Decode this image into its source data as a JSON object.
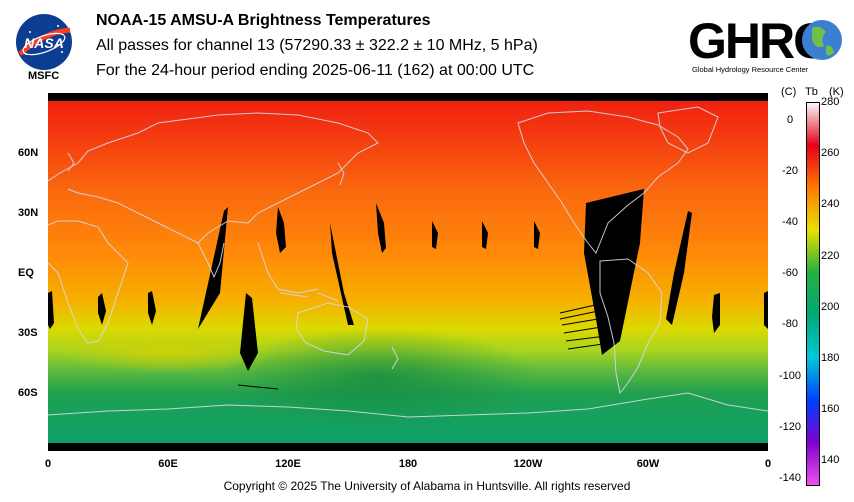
{
  "header": {
    "title": "NOAA-15 AMSU-A Brightness Temperatures",
    "subtitle": "All passes for channel 13 (57290.33 ± 322.2 ± 10 MHz, 5 hPa)",
    "period": "For the 24-hour period ending 2025-06-11 (162) at 00:00 UTC"
  },
  "logos": {
    "nasa_text": "NASA",
    "msfc_text": "MSFC",
    "ghrc_text": "GHRC",
    "ghrc_subtitle": "Global Hydrology Resource Center"
  },
  "map": {
    "lat_labels": [
      "60N",
      "30N",
      "EQ",
      "30S",
      "60S"
    ],
    "lon_labels": [
      "0",
      "60E",
      "120E",
      "180",
      "120W",
      "60W",
      "0"
    ]
  },
  "colorbar": {
    "unit_c": "(C)",
    "unit_tb": "Tb",
    "unit_k": "(K)",
    "celsius_ticks": [
      "0",
      "-20",
      "-40",
      "-60",
      "-80",
      "-100",
      "-120",
      "-140"
    ],
    "kelvin_ticks": [
      "280",
      "260",
      "240",
      "220",
      "200",
      "180",
      "160",
      "140"
    ],
    "kelvin_range": [
      130,
      280
    ],
    "colors": [
      "#f8f8f8",
      "#e8001a",
      "#ff7a00",
      "#e8e000",
      "#22b040",
      "#00a878",
      "#00c8d8",
      "#0040ff",
      "#8000d0",
      "#f050f0"
    ]
  },
  "copyright": "Copyright © 2025 The University of Alabama in Huntsville.  All rights reserved"
}
